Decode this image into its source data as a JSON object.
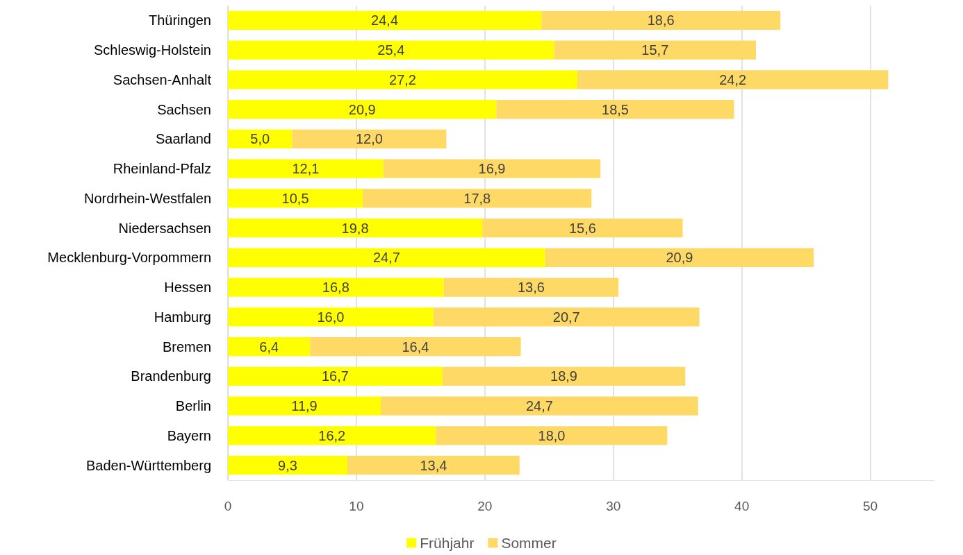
{
  "chart_data": {
    "type": "bar",
    "orientation": "horizontal",
    "stacked": true,
    "categories": [
      "Thüringen",
      "Schleswig-Holstein",
      "Sachsen-Anhalt",
      "Sachsen",
      "Saarland",
      "Rheinland-Pfalz",
      "Nordrhein-Westfalen",
      "Niedersachsen",
      "Mecklenburg-Vorpommern",
      "Hessen",
      "Hamburg",
      "Bremen",
      "Brandenburg",
      "Berlin",
      "Bayern",
      "Baden-Württemberg"
    ],
    "series": [
      {
        "name": "Frühjahr",
        "color": "#ffff00",
        "values": [
          24.4,
          25.4,
          27.2,
          20.9,
          5.0,
          12.1,
          10.5,
          19.8,
          24.7,
          16.8,
          16.0,
          6.4,
          16.7,
          11.9,
          16.2,
          9.3
        ],
        "value_labels": [
          "24,4",
          "25,4",
          "27,2",
          "20,9",
          "5,0",
          "12,1",
          "10,5",
          "19,8",
          "24,7",
          "16,8",
          "16,0",
          "6,4",
          "16,7",
          "11,9",
          "16,2",
          "9,3"
        ]
      },
      {
        "name": "Sommer",
        "color": "#ffd966",
        "values": [
          18.6,
          15.7,
          24.2,
          18.5,
          12.0,
          16.9,
          17.8,
          15.6,
          20.9,
          13.6,
          20.7,
          16.4,
          18.9,
          24.7,
          18.0,
          13.4
        ],
        "value_labels": [
          "18,6",
          "15,7",
          "24,2",
          "18,5",
          "12,0",
          "16,9",
          "17,8",
          "15,6",
          "20,9",
          "13,6",
          "20,7",
          "16,4",
          "18,9",
          "24,7",
          "18,0",
          "13,4"
        ]
      }
    ],
    "xlim": [
      0,
      55
    ],
    "xticks": [
      0,
      10,
      20,
      30,
      40,
      50
    ],
    "grid": "x",
    "legend": "bottom"
  }
}
